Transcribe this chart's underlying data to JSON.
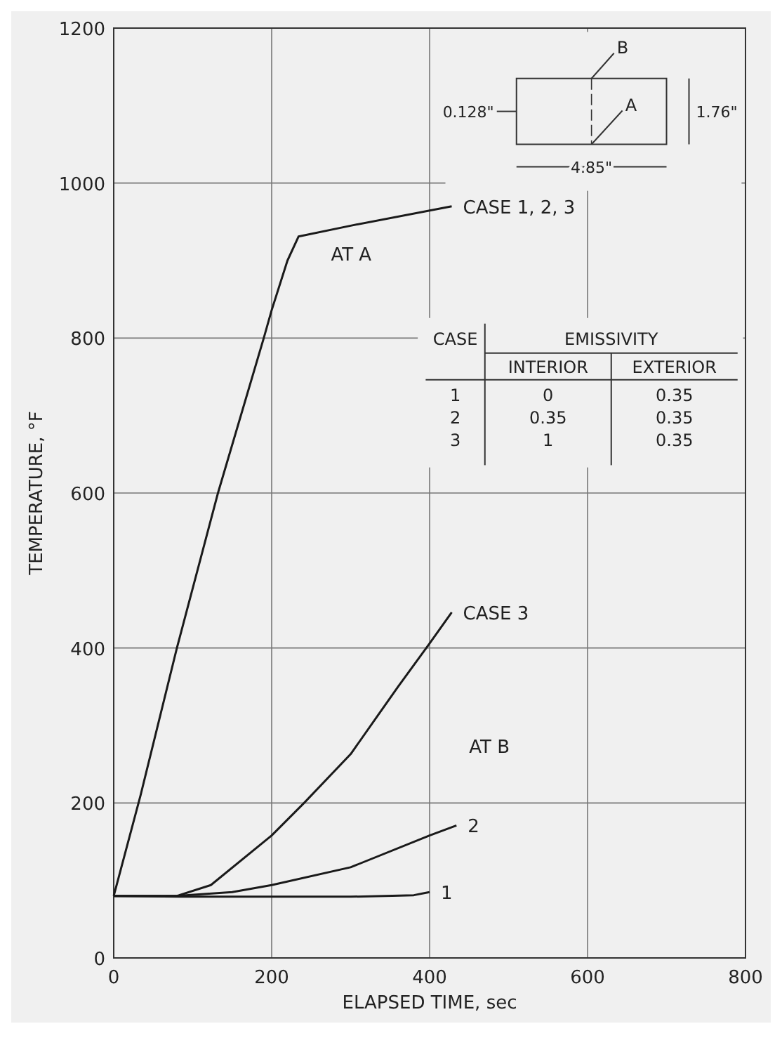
{
  "chart_data": {
    "type": "line",
    "xlabel": "ELAPSED TIME, sec",
    "ylabel": "TEMPERATURE, °F",
    "xlim": [
      0,
      800
    ],
    "xticks": [
      0,
      200,
      400,
      600,
      800
    ],
    "ylim": [
      0,
      1200
    ],
    "yticks": [
      0,
      200,
      400,
      600,
      800,
      1000,
      1200
    ],
    "grid": true,
    "marker": "none",
    "line_style": "solid",
    "series": [
      {
        "name": "CASE 1, 2, 3",
        "color": "#1a1a1a",
        "x": [
          0,
          34,
          80,
          132,
          190,
          200,
          220,
          234,
          300,
          428
        ],
        "values": [
          80,
          210,
          400,
          600,
          800,
          836,
          900,
          931,
          945,
          970
        ]
      },
      {
        "name": "CASE 3",
        "color": "#1a1a1a",
        "x": [
          0,
          80,
          123,
          200,
          241,
          300,
          360,
          400,
          428
        ],
        "values": [
          80,
          80,
          94,
          158,
          200,
          263,
          350,
          406,
          446
        ]
      },
      {
        "name": "2",
        "color": "#1a1a1a",
        "x": [
          0,
          80,
          150,
          200,
          300,
          400,
          434
        ],
        "values": [
          80,
          80,
          85,
          94,
          117,
          158,
          171
        ]
      },
      {
        "name": "1",
        "color": "#1a1a1a",
        "x": [
          0,
          100,
          200,
          300,
          380,
          400
        ],
        "values": [
          80,
          79,
          79,
          79,
          81,
          85
        ]
      }
    ],
    "annotations": [
      "AT A",
      "AT B",
      "B",
      "A",
      "0.128\"",
      "1.76\"",
      "4.85\"",
      "CASE",
      "EMISSIVITY",
      "INTERIOR",
      "EXTERIOR",
      "1",
      "0",
      "0.35",
      "2",
      "0.35",
      "0.35",
      "3",
      "1",
      "0.35"
    ]
  }
}
